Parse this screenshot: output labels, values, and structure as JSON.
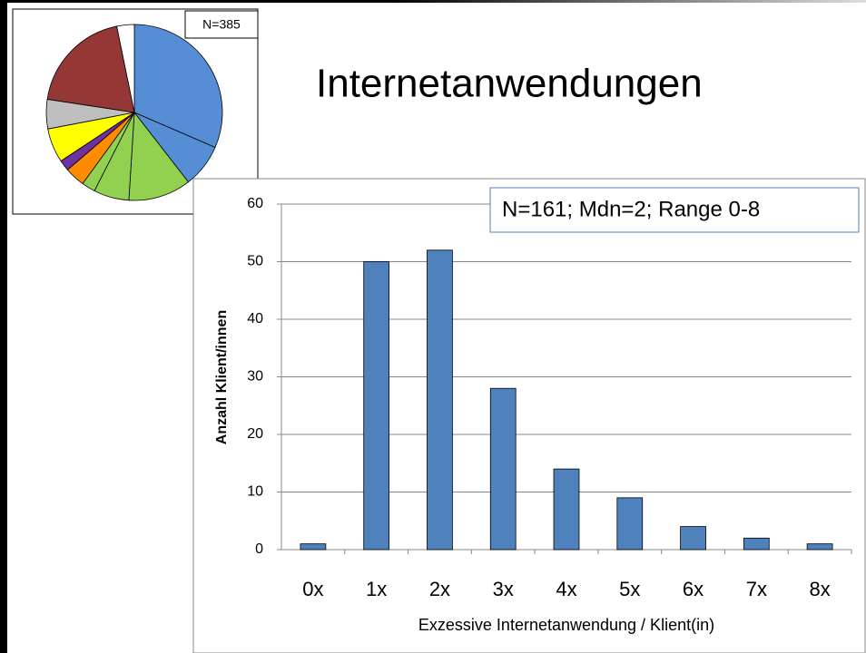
{
  "title": "Internetanwendungen",
  "chart_data": [
    {
      "type": "pie",
      "annotation": "N=385",
      "values": [
        31.5,
        8,
        11.5,
        6.5,
        2.5,
        3.7,
        2,
        6.3,
        5.4,
        19.4,
        3.2
      ],
      "colors": [
        "#558ed5",
        "#558ed5",
        "#92d050",
        "#92d050",
        "#92d050",
        "#ff8c00",
        "#7030a0",
        "#ffff00",
        "#bfbfbf",
        "#953735",
        "#ffffff"
      ]
    },
    {
      "type": "bar",
      "annotation": "N=161; Mdn=2; Range 0-8",
      "categories": [
        "0x",
        "1x",
        "2x",
        "3x",
        "4x",
        "5x",
        "6x",
        "7x",
        "8x"
      ],
      "values": [
        1,
        50,
        52,
        28,
        14,
        9,
        4,
        2,
        1
      ],
      "color": "#4f81bd",
      "xlabel": "Exzessive Internetanwendung / Klient(in)",
      "ylabel": "Anzahl Klient/innen",
      "ylim": [
        0,
        60
      ],
      "yticks": [
        0,
        10,
        20,
        30,
        40,
        50,
        60
      ],
      "grid": true
    }
  ]
}
